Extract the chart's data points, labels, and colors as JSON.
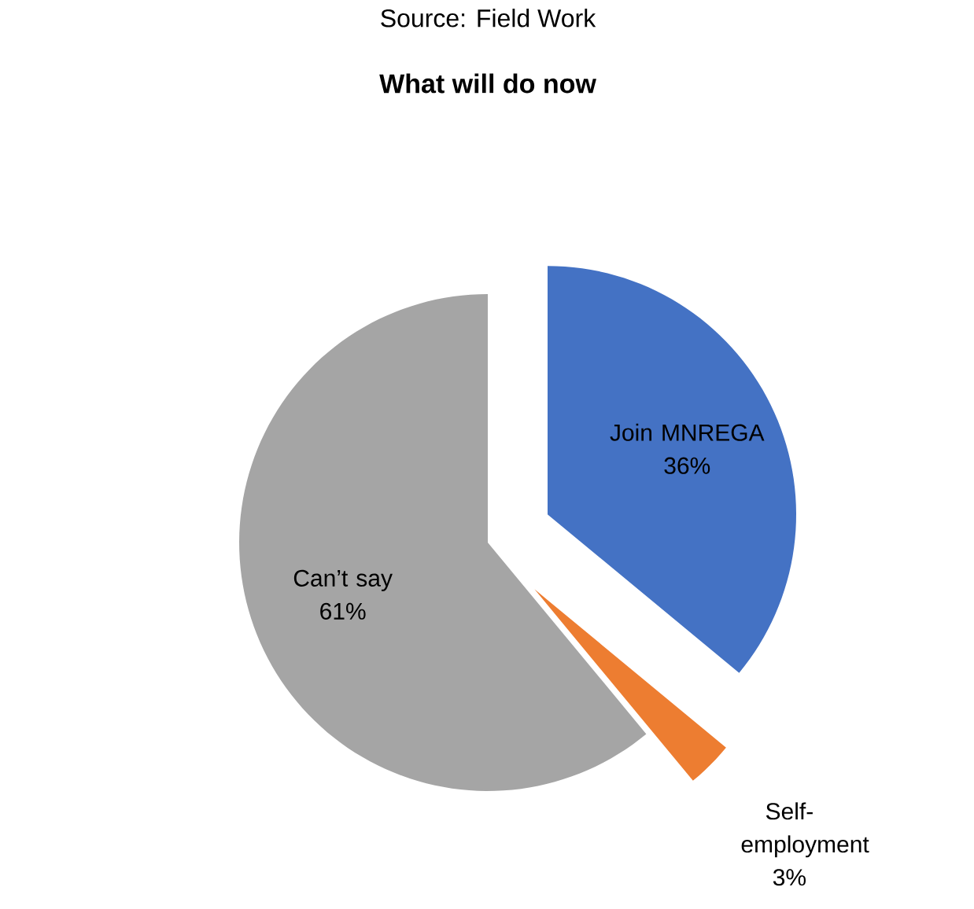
{
  "chart_data": {
    "type": "pie",
    "title": "What will do now",
    "annotations": [
      "Source: Field Work"
    ],
    "categories": [
      "Join MNREGA",
      "Self-employment",
      "Can’t say"
    ],
    "values": [
      36,
      3,
      61
    ],
    "colors": [
      "#4472c4",
      "#ed7d31",
      "#a5a5a5"
    ],
    "value_labels": [
      "36%",
      "3%",
      "61%"
    ]
  }
}
